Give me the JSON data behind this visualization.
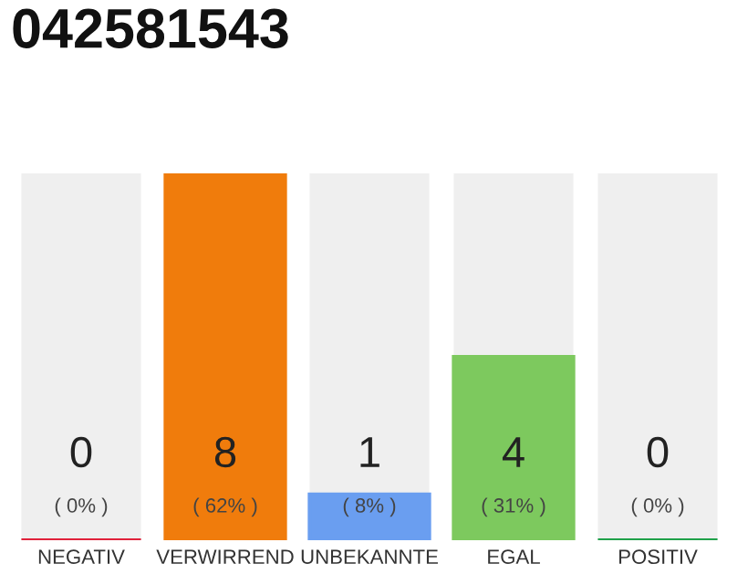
{
  "chart_data": {
    "type": "bar",
    "title": "042581543",
    "categories": [
      "NEGATIV",
      "VERWIRREND",
      "UNBEKANNTE",
      "EGAL",
      "POSITIV"
    ],
    "values": [
      0,
      8,
      1,
      4,
      0
    ],
    "colors": [
      "#e0223a",
      "#f07c0c",
      "#6a9ef0",
      "#7dc95e",
      "#1fa14a"
    ],
    "ylim": [
      0,
      8
    ],
    "value_labels": [
      "0\n( 0% )",
      "8\n( 62% )",
      "1\n( 8% )",
      "4\n( 31% )",
      "0\n( 0% )"
    ],
    "tick_labels": "x",
    "grid": false,
    "legend": false
  }
}
